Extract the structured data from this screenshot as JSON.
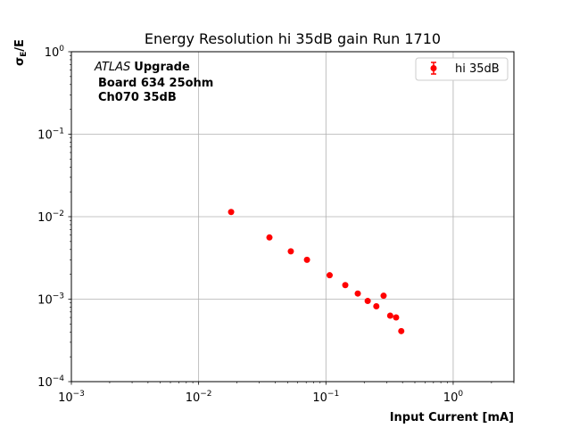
{
  "chart_data": {
    "type": "scatter",
    "title": "Energy Resolution hi 35dB gain Run 1710",
    "xlabel": "Input Current [mA]",
    "ylabel_main": "σ",
    "ylabel_sub": "E",
    "ylabel_rest": "/E",
    "xscale": "log",
    "yscale": "log",
    "xlim": [
      0.001,
      3
    ],
    "ylim": [
      0.0001,
      1
    ],
    "grid": true,
    "legend_position": "top-right",
    "color": "#ff0000",
    "annotation": {
      "atlas": "ATLAS",
      "upgrade": "Upgrade",
      "line2": "Board 634 25ohm",
      "line3": "Ch070 35dB"
    },
    "x_ticks": [
      {
        "value": 0.001,
        "base": "10",
        "exp": "−3"
      },
      {
        "value": 0.01,
        "base": "10",
        "exp": "−2"
      },
      {
        "value": 0.1,
        "base": "10",
        "exp": "−1"
      },
      {
        "value": 1,
        "base": "10",
        "exp": "0"
      }
    ],
    "y_ticks": [
      {
        "value": 0.0001,
        "base": "10",
        "exp": "−4"
      },
      {
        "value": 0.001,
        "base": "10",
        "exp": "−3"
      },
      {
        "value": 0.01,
        "base": "10",
        "exp": "−2"
      },
      {
        "value": 0.1,
        "base": "10",
        "exp": "−1"
      },
      {
        "value": 1,
        "base": "10",
        "exp": "0"
      }
    ],
    "series": [
      {
        "name": "hi 35dB",
        "x": [
          0.018,
          0.036,
          0.053,
          0.071,
          0.107,
          0.142,
          0.178,
          0.213,
          0.249,
          0.284,
          0.32,
          0.356,
          0.391
        ],
        "y": [
          0.0114,
          0.0056,
          0.0038,
          0.003,
          0.00195,
          0.00148,
          0.00117,
          0.00095,
          0.00082,
          0.0011,
          0.00063,
          0.0006,
          0.00041
        ]
      }
    ]
  }
}
